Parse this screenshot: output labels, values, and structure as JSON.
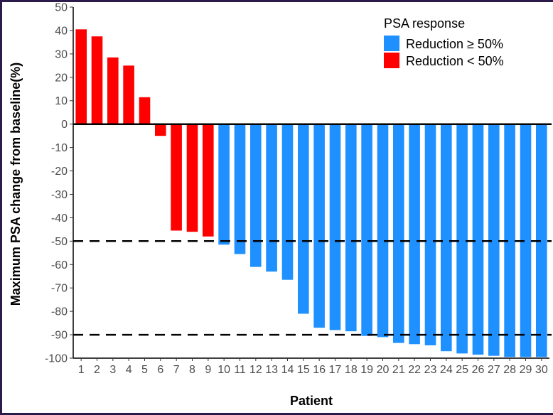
{
  "chart_data": {
    "type": "bar",
    "title": "",
    "xlabel": "Patient",
    "ylabel": "Maximum PSA change from baseline(%)",
    "ylim": [
      -100,
      50
    ],
    "yticks": [
      50,
      40,
      30,
      20,
      10,
      0,
      -10,
      -20,
      -30,
      -40,
      -50,
      -60,
      -70,
      -80,
      -90,
      -100
    ],
    "categories": [
      "1",
      "2",
      "3",
      "4",
      "5",
      "6",
      "7",
      "8",
      "9",
      "10",
      "11",
      "12",
      "13",
      "14",
      "15",
      "16",
      "17",
      "18",
      "19",
      "20",
      "21",
      "22",
      "23",
      "24",
      "25",
      "26",
      "27",
      "28",
      "29",
      "30"
    ],
    "values": [
      40.5,
      37.5,
      28.5,
      25,
      11.5,
      -5,
      -45.5,
      -46,
      -48,
      -51.5,
      -55.5,
      -61,
      -63,
      -66.5,
      -81,
      -87,
      -88,
      -88.5,
      -90.5,
      -91,
      -93.5,
      -94,
      -94.5,
      -97,
      -98,
      -98.5,
      -99,
      -99.5,
      -99.5,
      -99.5
    ],
    "groups": [
      "Reduction < 50%",
      "Reduction < 50%",
      "Reduction < 50%",
      "Reduction < 50%",
      "Reduction < 50%",
      "Reduction < 50%",
      "Reduction < 50%",
      "Reduction < 50%",
      "Reduction < 50%",
      "Reduction ≥ 50%",
      "Reduction ≥ 50%",
      "Reduction ≥ 50%",
      "Reduction ≥ 50%",
      "Reduction ≥ 50%",
      "Reduction ≥ 50%",
      "Reduction ≥ 50%",
      "Reduction ≥ 50%",
      "Reduction ≥ 50%",
      "Reduction ≥ 50%",
      "Reduction ≥ 50%",
      "Reduction ≥ 50%",
      "Reduction ≥ 50%",
      "Reduction ≥ 50%",
      "Reduction ≥ 50%",
      "Reduction ≥ 50%",
      "Reduction ≥ 50%",
      "Reduction ≥ 50%",
      "Reduction ≥ 50%",
      "Reduction ≥ 50%",
      "Reduction ≥ 50%"
    ],
    "reference_lines": [
      0,
      -50,
      -90
    ],
    "legend": {
      "title": "PSA response",
      "placement": "top-right",
      "entries": [
        {
          "label": "Reduction ≥ 50%",
          "color": "#1e90ff"
        },
        {
          "label": "Reduction < 50%",
          "color": "#ff0000"
        }
      ]
    },
    "grid": false
  }
}
